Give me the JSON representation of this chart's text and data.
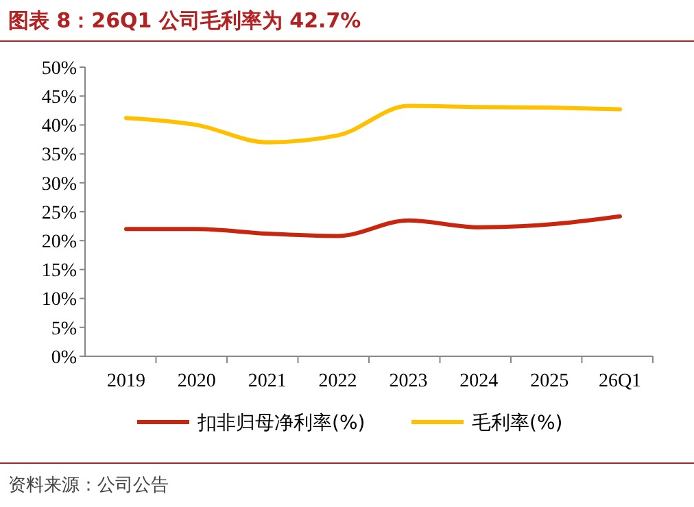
{
  "chart_data": {
    "type": "line",
    "title": "图表 8：26Q1 公司毛利率为 42.7%",
    "categories": [
      "2019",
      "2020",
      "2021",
      "2022",
      "2023",
      "2024",
      "2025",
      "26Q1"
    ],
    "series": [
      {
        "name": "扣非归母净利率(%)",
        "color": "#c8260f",
        "values": [
          22.0,
          22.0,
          21.2,
          20.8,
          23.5,
          22.3,
          22.8,
          24.2
        ]
      },
      {
        "name": "毛利率(%)",
        "color": "#ffc000",
        "values": [
          41.2,
          40.0,
          37.0,
          38.2,
          43.3,
          43.1,
          43.0,
          42.7
        ]
      }
    ],
    "ylim": [
      0,
      50
    ],
    "yticks": [
      {
        "value": 0,
        "label": "0%"
      },
      {
        "value": 5,
        "label": "5%"
      },
      {
        "value": 10,
        "label": "10%"
      },
      {
        "value": 15,
        "label": "15%"
      },
      {
        "value": 20,
        "label": "20%"
      },
      {
        "value": 25,
        "label": "25%"
      },
      {
        "value": 30,
        "label": "30%"
      },
      {
        "value": 35,
        "label": "35%"
      },
      {
        "value": 40,
        "label": "40%"
      },
      {
        "value": 45,
        "label": "45%"
      },
      {
        "value": 50,
        "label": "50%"
      }
    ],
    "legend": "bottom",
    "line_style": "solid",
    "marker": "none",
    "annotations": [
      "资料来源：公司公告"
    ]
  }
}
